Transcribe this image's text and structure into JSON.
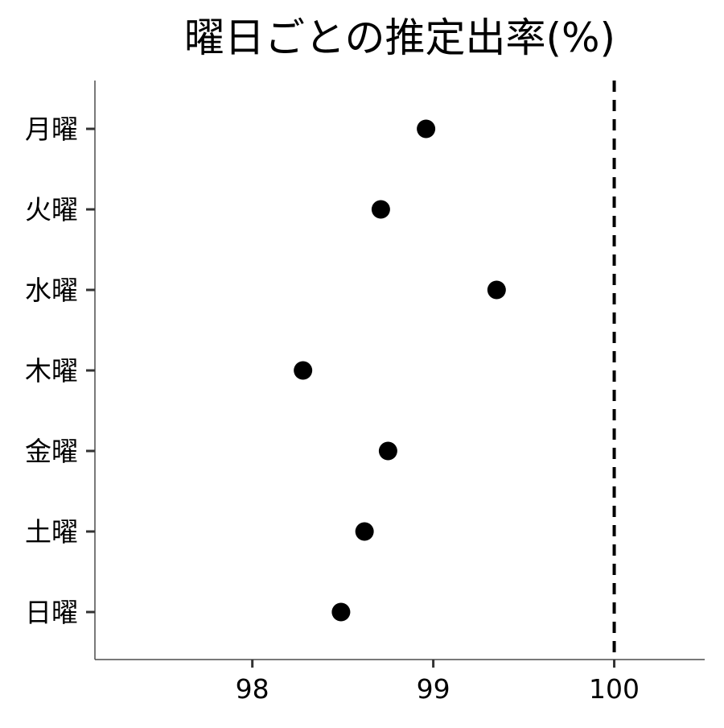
{
  "chart_data": {
    "type": "scatter",
    "title": "曜日ごとの推定出率(%)",
    "xlabel": "",
    "ylabel": "",
    "xlim": [
      97.13,
      100.5
    ],
    "x_ticks": [
      98,
      99,
      100
    ],
    "x_tick_labels": [
      "98",
      "99",
      "100"
    ],
    "categories": [
      "月曜",
      "火曜",
      "水曜",
      "木曜",
      "金曜",
      "土曜",
      "日曜"
    ],
    "series": [
      {
        "values": [
          98.96,
          98.71,
          99.35,
          98.28,
          98.75,
          98.62,
          98.49
        ]
      }
    ],
    "reference_line": {
      "x": 100,
      "style": "dashed"
    },
    "grid": false,
    "legend": "none",
    "colors": {
      "point": "#000000",
      "axis": "#4d4d4d",
      "reference": "#000000"
    }
  }
}
